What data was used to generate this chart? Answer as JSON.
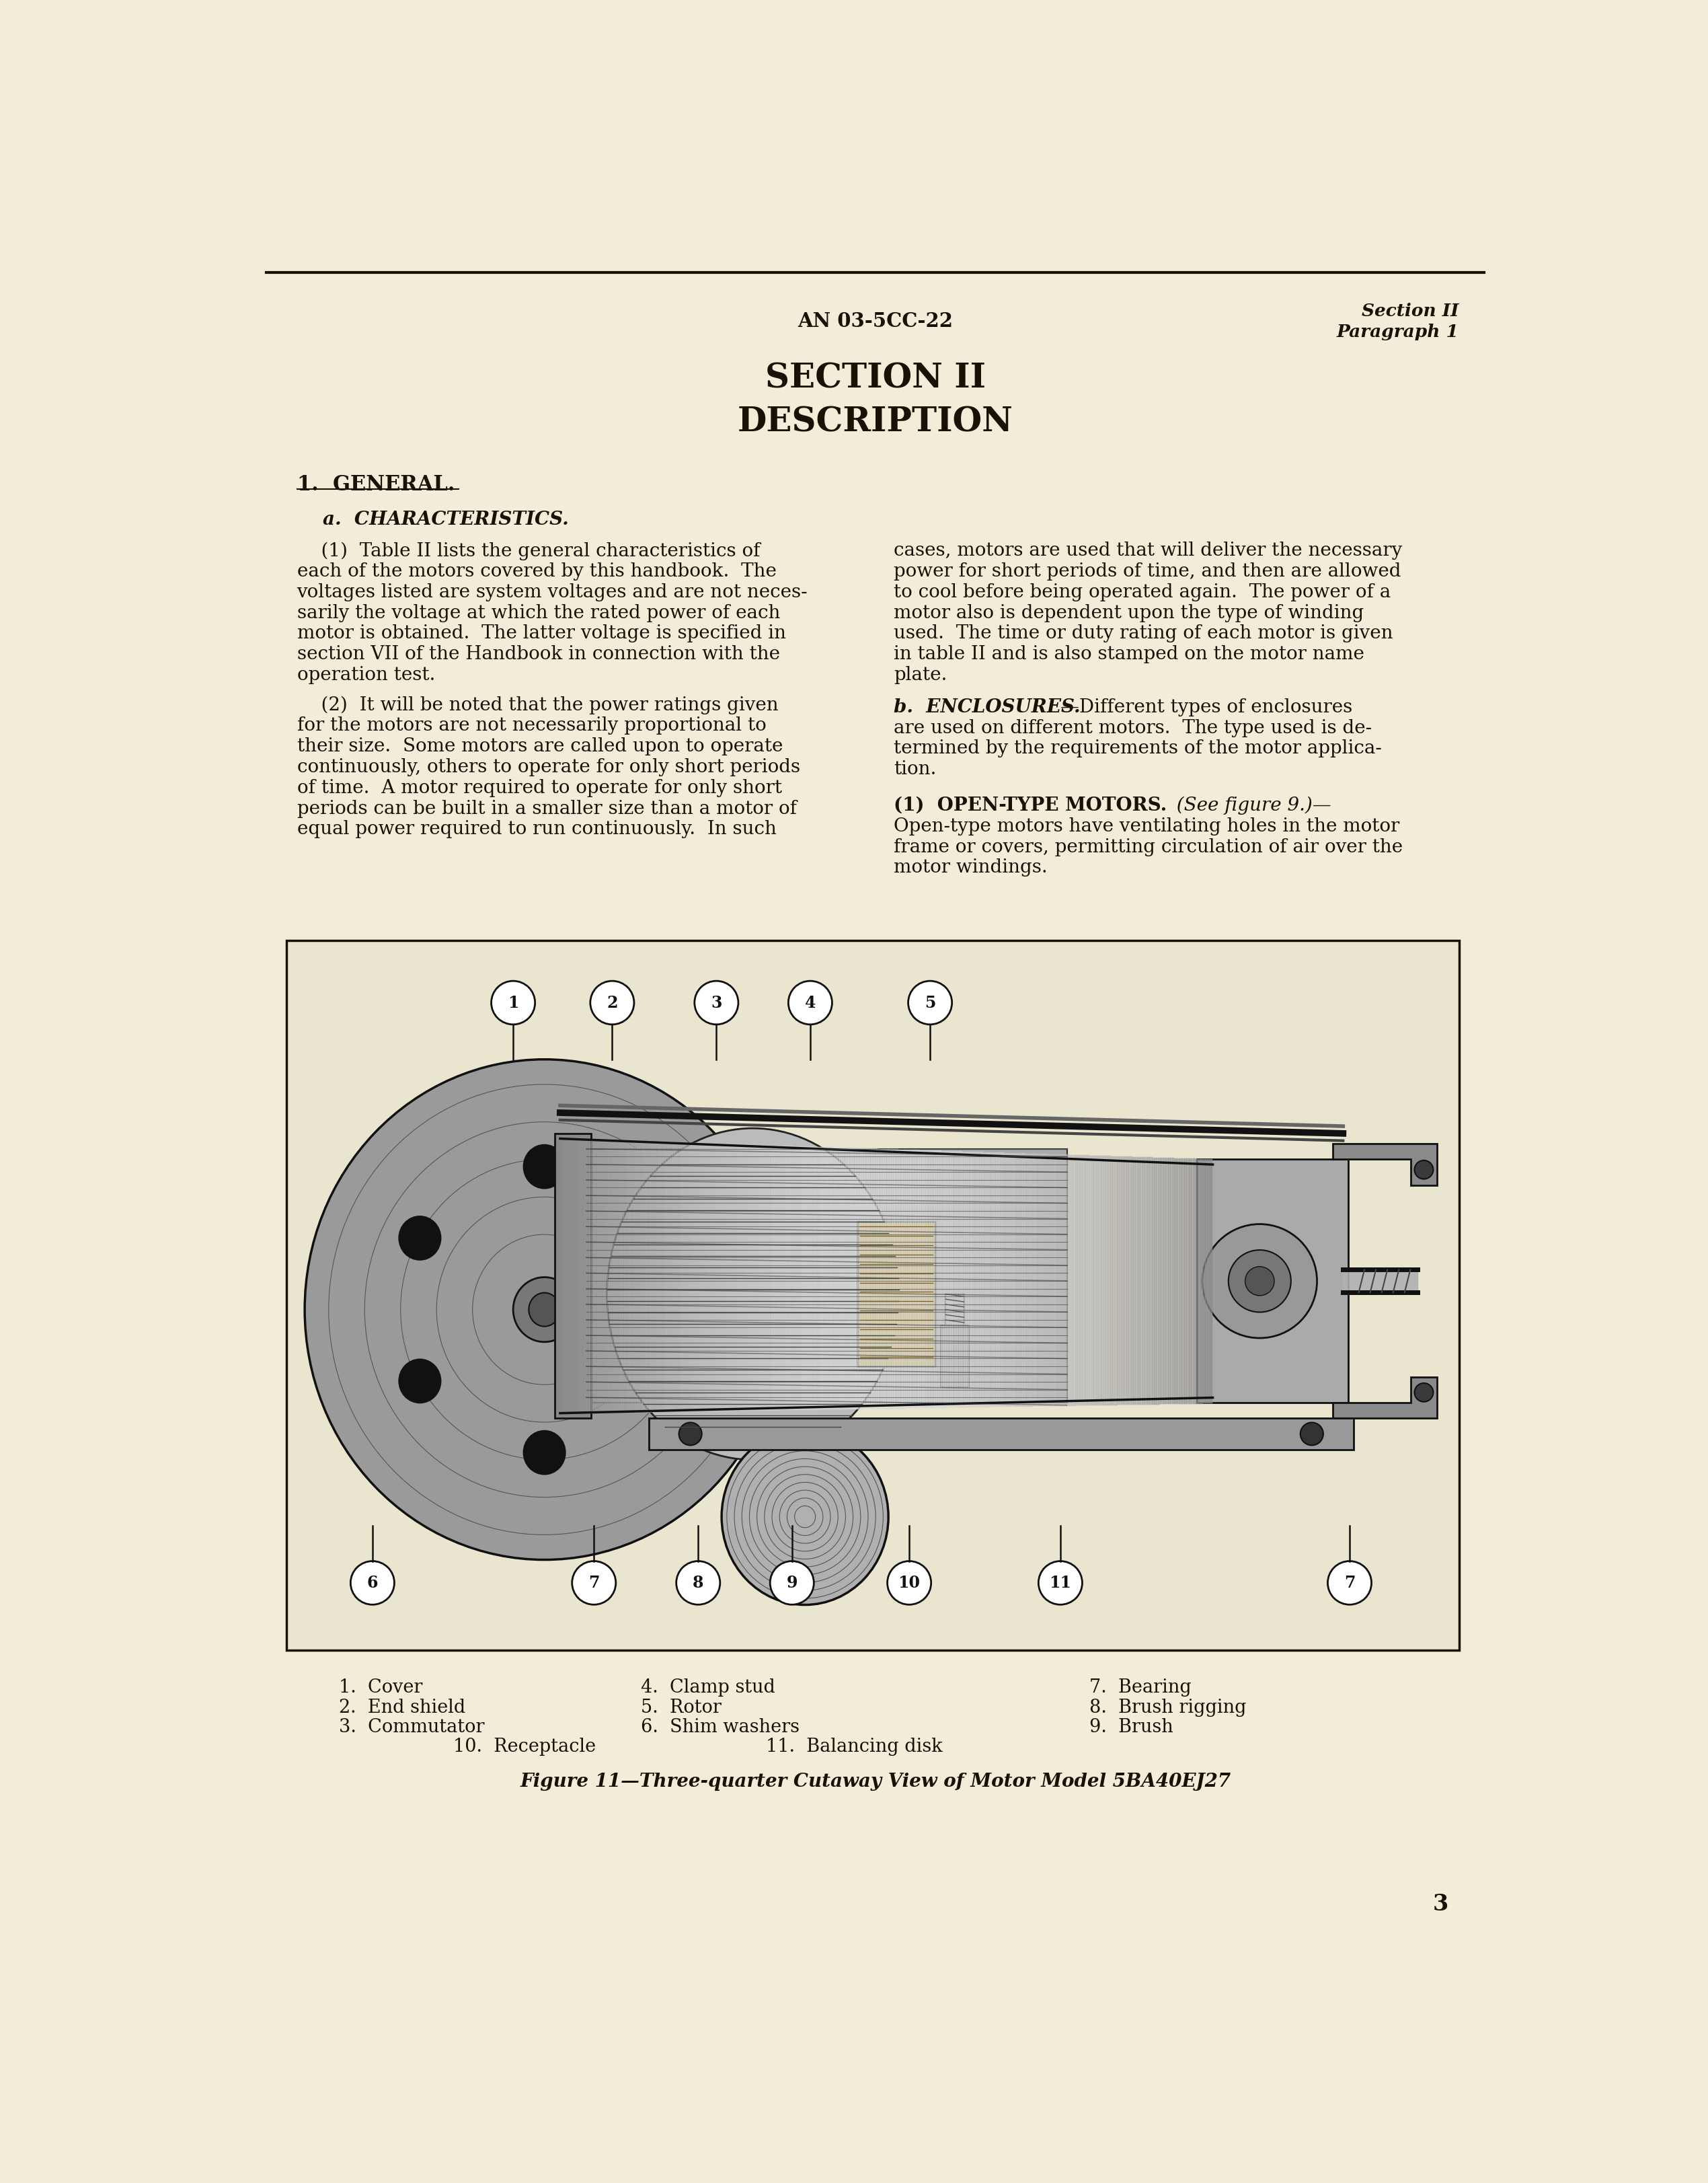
{
  "page_bg": "#f2edd8",
  "page_number": "3",
  "header_doc_num": "AN 03-5CC-22",
  "header_right_line1": "Section II",
  "header_right_line2": "Paragraph 1",
  "title_line1": "SECTION II",
  "title_line2": "DESCRIPTION",
  "section_heading": "1.  GENERAL.",
  "sub_a": "a.  CHARACTERISTICS.",
  "para1_col1_lines": [
    "    (1)  Table II lists the general characteristics of",
    "each of the motors covered by this handbook.  The",
    "voltages listed are system voltages and are not neces-",
    "sarily the voltage at which the rated power of each",
    "motor is obtained.  The latter voltage is specified in",
    "section VII of the Handbook in connection with the",
    "operation test."
  ],
  "para2_col1_lines": [
    "    (2)  It will be noted that the power ratings given",
    "for the motors are not necessarily proportional to",
    "their size.  Some motors are called upon to operate",
    "continuously, others to operate for only short periods",
    "of time.  A motor required to operate for only short",
    "periods can be built in a smaller size than a motor of",
    "equal power required to run continuously.  In such"
  ],
  "para1_col2_lines": [
    "cases, motors are used that will deliver the necessary",
    "power for short periods of time, and then are allowed",
    "to cool before being operated again.  The power of a",
    "motor also is dependent upon the type of winding",
    "used.  The time or duty rating of each motor is given",
    "in table II and is also stamped on the motor name",
    "plate."
  ],
  "sub_b_bold": "b.  ENCLOSURES.",
  "sub_b_rest_lines": [
    "—Different types of enclosures",
    "are used on different motors.  The type used is de-",
    "termined by the requirements of the motor applica-",
    "tion."
  ],
  "open_type_bold": "(1)  OPEN-TYPE MOTORS.",
  "open_type_italic": "  (See figure 9.)—",
  "open_type_lines": [
    "Open-type motors have ventilating holes in the motor",
    "frame or covers, permitting circulation of air over the",
    "motor windings."
  ],
  "figure_caption": "Figure 11—Three-quarter Cutaway View of Motor Model 5BA40EJ27",
  "parts_col1": [
    "1.  Cover",
    "2.  End shield",
    "3.  Commutator"
  ],
  "parts_col1b": [
    "10.  Receptacle"
  ],
  "parts_col2": [
    "4.  Clamp stud",
    "5.  Rotor",
    "6.  Shim washers"
  ],
  "parts_col2b": [
    "11.  Balancing disk"
  ],
  "parts_col3": [
    "7.  Bearing",
    "8.  Brush rigging",
    "9.  Brush"
  ],
  "text_color": "#1a1005",
  "border_color": "#1a1005",
  "fig_box_facecolor": "#eae5ce"
}
